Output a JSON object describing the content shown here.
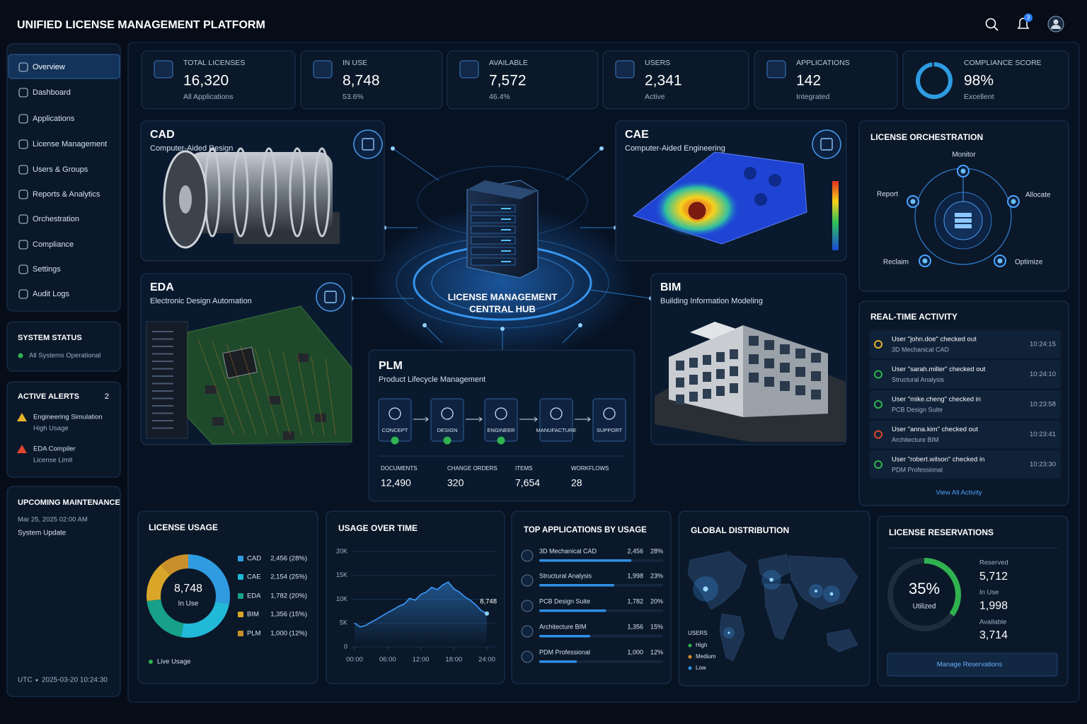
{
  "header": {
    "title": "UNIFIED LICENSE MANAGEMENT PLATFORM",
    "notifications": "3"
  },
  "nav": [
    "Overview",
    "Dashboard",
    "Applications",
    "License Management",
    "Users & Groups",
    "Reports & Analytics",
    "Orchestration",
    "Compliance",
    "Settings",
    "Audit Logs"
  ],
  "system_status": {
    "title": "SYSTEM STATUS",
    "status": "All Systems Operational"
  },
  "alerts": {
    "title": "ACTIVE ALERTS",
    "count": "2",
    "items": [
      {
        "title": "Engineering Simulation",
        "detail": "High Usage"
      },
      {
        "title": "EDA Compiler",
        "detail": "License Limit"
      }
    ]
  },
  "maintenance": {
    "title": "UPCOMING MAINTENANCE",
    "date": "Mar 25, 2025 02:00 AM",
    "task": "System Update"
  },
  "clock": {
    "zone": "UTC",
    "time": "2025-03-20 10:24:30"
  },
  "kpis": [
    {
      "label": "TOTAL LICENSES",
      "value": "16,320",
      "sub": "All Applications"
    },
    {
      "label": "IN USE",
      "value": "8,748",
      "sub": "53.6%"
    },
    {
      "label": "AVAILABLE",
      "value": "7,572",
      "sub": "46.4%"
    },
    {
      "label": "USERS",
      "value": "2,341",
      "sub": "Active"
    },
    {
      "label": "APPLICATIONS",
      "value": "142",
      "sub": "Integrated"
    }
  ],
  "compliance": {
    "label": "COMPLIANCE SCORE",
    "value": 98,
    "value_label": "98%",
    "sub": "Excellent"
  },
  "hub": {
    "line1": "LICENSE MANAGEMENT",
    "line2": "CENTRAL HUB"
  },
  "modules": [
    {
      "name": "CAD",
      "full": "Computer-Aided Design"
    },
    {
      "name": "CAE",
      "full": "Computer-Aided Engineering"
    },
    {
      "name": "EDA",
      "full": "Electronic Design Automation"
    },
    {
      "name": "BIM",
      "full": "Building Information Modeling"
    }
  ],
  "plm": {
    "name": "PLM",
    "full": "Product Lifecycle Management",
    "steps": [
      "CONCEPT",
      "DESIGN",
      "ENGINEER",
      "MANUFACTURE",
      "SUPPORT"
    ],
    "stats": [
      {
        "label": "DOCUMENTS",
        "value": "12,490"
      },
      {
        "label": "CHANGE ORDERS",
        "value": "320"
      },
      {
        "label": "ITEMS",
        "value": "7,654"
      },
      {
        "label": "WORKFLOWS",
        "value": "28"
      }
    ]
  },
  "orchestration": {
    "title": "LICENSE ORCHESTRATION",
    "steps": [
      "Monitor",
      "Allocate",
      "Optimize",
      "Reclaim",
      "Report"
    ]
  },
  "activity": {
    "title": "REAL-TIME ACTIVITY",
    "items": [
      {
        "text": "User \"john.doe\" checked out",
        "app": "3D Mechanical CAD",
        "time": "10:24:15"
      },
      {
        "text": "User \"sarah.miller\" checked out",
        "app": "Structural Analysis",
        "time": "10:24:10"
      },
      {
        "text": "User \"mike.cheng\" checked in",
        "app": "PCB Design Suite",
        "time": "10:23:58"
      },
      {
        "text": "User \"anna.kim\" checked out",
        "app": "Architecture BIM",
        "time": "10:23:41"
      },
      {
        "text": "User \"robert.wilson\" checked in",
        "app": "PDM Professional",
        "time": "10:23:30"
      }
    ],
    "link": "View All Activity"
  },
  "license_usage": {
    "type": "donut",
    "title": "LICENSE USAGE",
    "center_value": "8,748",
    "center_label": "In Use",
    "categories": [
      "CAD",
      "CAE",
      "EDA",
      "BIM",
      "PLM"
    ],
    "values": [
      2456,
      2154,
      1782,
      1356,
      1000
    ],
    "value_labels": [
      "2,456 (28%)",
      "2,154 (25%)",
      "1,782 (20%)",
      "1,356 (15%)",
      "1,000 (12%)"
    ],
    "colors": [
      "#2f9be0",
      "#22b8d8",
      "#17a08a",
      "#d9a62a",
      "#c8902a"
    ],
    "legend_note": "Live Usage"
  },
  "usage_over_time": {
    "type": "line",
    "title": "USAGE OVER TIME",
    "x": [
      0,
      1,
      2,
      3,
      4,
      5,
      6,
      7,
      8,
      9,
      10,
      11,
      12,
      13,
      14,
      15,
      16,
      17,
      18,
      19,
      20,
      21,
      22,
      23,
      24
    ],
    "values": [
      5000,
      4200,
      4500,
      5200,
      5800,
      6500,
      7200,
      7800,
      8500,
      9000,
      10200,
      9800,
      11000,
      11500,
      12500,
      12000,
      13000,
      13600,
      12200,
      11500,
      10500,
      9800,
      8800,
      7600,
      7000
    ],
    "color": "#3b9cff",
    "xlim": [
      0,
      24
    ],
    "ylim": [
      0,
      20000
    ],
    "xticks": [
      {
        "value": 0,
        "label": "00:00"
      },
      {
        "value": 6,
        "label": "06:00"
      },
      {
        "value": 12,
        "label": "12:00"
      },
      {
        "value": 18,
        "label": "18:00"
      },
      {
        "value": 24,
        "label": "24:00"
      }
    ],
    "yticks": [
      0,
      {
        "value": 5000,
        "label": "5K"
      },
      {
        "value": 10000,
        "label": "10K"
      },
      {
        "value": 15000,
        "label": "15K"
      },
      {
        "value": 20000,
        "label": "20K"
      }
    ],
    "annotation": "8,748"
  },
  "top_applications": {
    "type": "hbar",
    "title": "TOP APPLICATIONS BY USAGE",
    "categories": [
      "3D Mechanical CAD",
      "Structural Analysis",
      "PCB Design Suite",
      "Architecture BIM",
      "PDM Professional"
    ],
    "values": [
      2456,
      1998,
      1782,
      1356,
      1000
    ],
    "value_labels": [
      "2,456",
      "1,998",
      "1,782",
      "1,356",
      "1,000"
    ],
    "shares": [
      "28%",
      "23%",
      "20%",
      "15%",
      "12%"
    ],
    "xlim": [
      0,
      3300
    ],
    "color": "#2f8fe6"
  },
  "global_distribution": {
    "title": "GLOBAL DISTRIBUTION",
    "legend_title": "USERS",
    "levels": [
      "High",
      "Medium",
      "Low"
    ]
  },
  "reservations": {
    "type": "ring",
    "title": "LICENSE RESERVATIONS",
    "value": 35,
    "value_label": "35%",
    "value_caption": "Utilized",
    "color": "#2fb24f",
    "items": [
      {
        "label": "Reserved",
        "value": "5,712"
      },
      {
        "label": "In Use",
        "value": "1,998"
      },
      {
        "label": "Available",
        "value": "3,714"
      }
    ],
    "button": "Manage Reservations"
  }
}
